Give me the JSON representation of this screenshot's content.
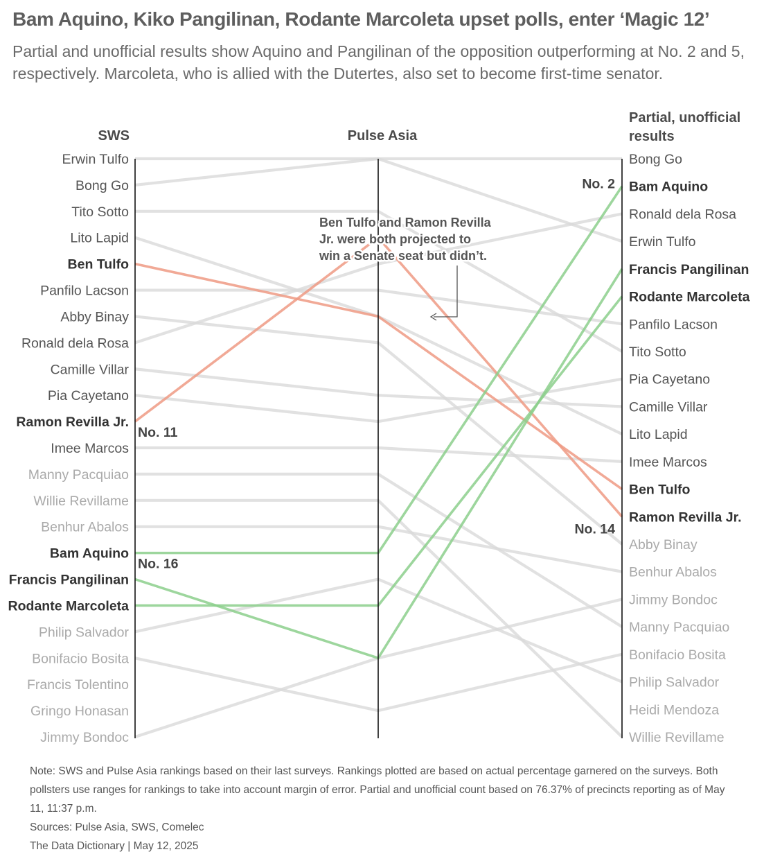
{
  "title": "Bam Aquino, Kiko Pangilinan, Rodante Marcoleta upset polls, enter ‘Magic 12’",
  "subtitle": "Partial and unofficial results show Aquino and Pangilinan of the opposition outperforming at No. 2 and 5, respectively. Marcoleta, who is allied with the Dutertes, also set to become first-time senator.",
  "colors": {
    "title": "#5e5e5e",
    "upset_green": "#8ccf8c",
    "miss_red": "#ee9a84",
    "other_line": "#d9d9d9",
    "axis": "#111111",
    "label_dark": "#555555",
    "label_light": "#aaaaaa",
    "label_bold": "#333333"
  },
  "chart_data": {
    "type": "slope",
    "columns": [
      "SWS",
      "Pulse Asia",
      "Partial, unofficial results"
    ],
    "sws_labels": [
      "Erwin Tulfo",
      "Bong Go",
      "Tito Sotto",
      "Lito Lapid",
      "Ben Tulfo",
      "Panfilo Lacson",
      "Abby Binay",
      "Ronald dela Rosa",
      "Camille Villar",
      "Pia Cayetano",
      "Ramon Revilla Jr.",
      "Imee Marcos",
      "Manny Pacquiao",
      "Willie Revillame",
      "Benhur Abalos",
      "Bam Aquino",
      "Francis Pangilinan",
      "Rodante Marcoleta",
      "Philip Salvador",
      "Bonifacio Bosita",
      "Francis Tolentino",
      "Gringo Honasan",
      "Jimmy Bondoc"
    ],
    "results_labels": [
      "Bong Go",
      "Bam Aquino",
      "Ronald dela Rosa",
      "Erwin Tulfo",
      "Francis Pangilinan",
      "Rodante Marcoleta",
      "Panfilo Lacson",
      "Tito Sotto",
      "Pia Cayetano",
      "Camille Villar",
      "Lito Lapid",
      "Imee Marcos",
      "Ben Tulfo",
      "Ramon Revilla Jr.",
      "Abby Binay",
      "Benhur Abalos",
      "Jimmy Bondoc",
      "Manny Pacquiao",
      "Bonifacio Bosita",
      "Philip Salvador",
      "Heidi Mendoza",
      "Willie Revillame"
    ],
    "bold_names": [
      "Ben Tulfo",
      "Ramon Revilla Jr.",
      "Bam Aquino",
      "Francis Pangilinan",
      "Rodante Marcoleta"
    ],
    "sws_light_from": 12,
    "results_light_from": 12,
    "highlight": {
      "green": [
        "Bam Aquino",
        "Francis Pangilinan",
        "Rodante Marcoleta"
      ],
      "red": [
        "Ben Tulfo",
        "Ramon Revilla Jr."
      ]
    },
    "lines": [
      {
        "name": "Erwin Tulfo",
        "sws": 1,
        "pulse": 1,
        "result": 4
      },
      {
        "name": "Bong Go",
        "sws": 2,
        "pulse": 1,
        "result": 1
      },
      {
        "name": "Tito Sotto",
        "sws": 3,
        "pulse": 3,
        "result": 8
      },
      {
        "name": "Lito Lapid",
        "sws": 4,
        "pulse": 7,
        "result": 11
      },
      {
        "name": "Ben Tulfo",
        "sws": 5,
        "pulse": 7,
        "result": 13
      },
      {
        "name": "Panfilo Lacson",
        "sws": 6,
        "pulse": 6,
        "result": 7
      },
      {
        "name": "Abby Binay",
        "sws": 7,
        "pulse": 8,
        "result": 15
      },
      {
        "name": "Ronald dela Rosa",
        "sws": 8,
        "pulse": 5,
        "result": 3
      },
      {
        "name": "Camille Villar",
        "sws": 9,
        "pulse": 10,
        "result": 10
      },
      {
        "name": "Pia Cayetano",
        "sws": 10,
        "pulse": 11,
        "result": 9
      },
      {
        "name": "Ramon Revilla Jr.",
        "sws": 11,
        "pulse": 4,
        "result": 14
      },
      {
        "name": "Imee Marcos",
        "sws": 12,
        "pulse": 12,
        "result": 12
      },
      {
        "name": "Manny Pacquiao",
        "sws": 13,
        "pulse": 13,
        "result": 18
      },
      {
        "name": "Willie Revillame",
        "sws": 14,
        "pulse": 14,
        "result": 22
      },
      {
        "name": "Benhur Abalos",
        "sws": 15,
        "pulse": 15,
        "result": 16
      },
      {
        "name": "Bam Aquino",
        "sws": 16,
        "pulse": 16,
        "result": 2
      },
      {
        "name": "Francis Pangilinan",
        "sws": 17,
        "pulse": 20,
        "result": 5
      },
      {
        "name": "Rodante Marcoleta",
        "sws": 18,
        "pulse": 18,
        "result": 6
      },
      {
        "name": "Philip Salvador",
        "sws": 19,
        "pulse": 17,
        "result": 20
      },
      {
        "name": "Bonifacio Bosita",
        "sws": 20,
        "pulse": 22,
        "result": 19
      },
      {
        "name": "Jimmy Bondoc",
        "sws": 23,
        "pulse": 20,
        "result": 17
      }
    ],
    "markers": [
      {
        "text": "No. 11",
        "at": "sws",
        "name": "Ramon Revilla Jr."
      },
      {
        "text": "No. 16",
        "at": "sws",
        "name": "Bam Aquino"
      },
      {
        "text": "No. 2",
        "at": "result",
        "name": "Bam Aquino"
      },
      {
        "text": "No. 14",
        "at": "result",
        "name": "Ramon Revilla Jr."
      }
    ],
    "annotation": [
      "Ben Tulfo and Ramon Revilla",
      "Jr. were both projected to",
      "win a Senate seat but didn’t."
    ]
  },
  "notes": {
    "note": "Note: SWS and Pulse Asia rankings based on their last surveys. Rankings plotted are based on actual percentage garnered on the surveys. Both pollsters use ranges for rankings to take into account margin of error. Partial and unofficial count based on 76.37% of precincts reporting as of May 11, 11:37 p.m.",
    "sources": "Sources: Pulse Asia, SWS, Comelec",
    "credit": "The Data Dictionary | May 12, 2025"
  }
}
